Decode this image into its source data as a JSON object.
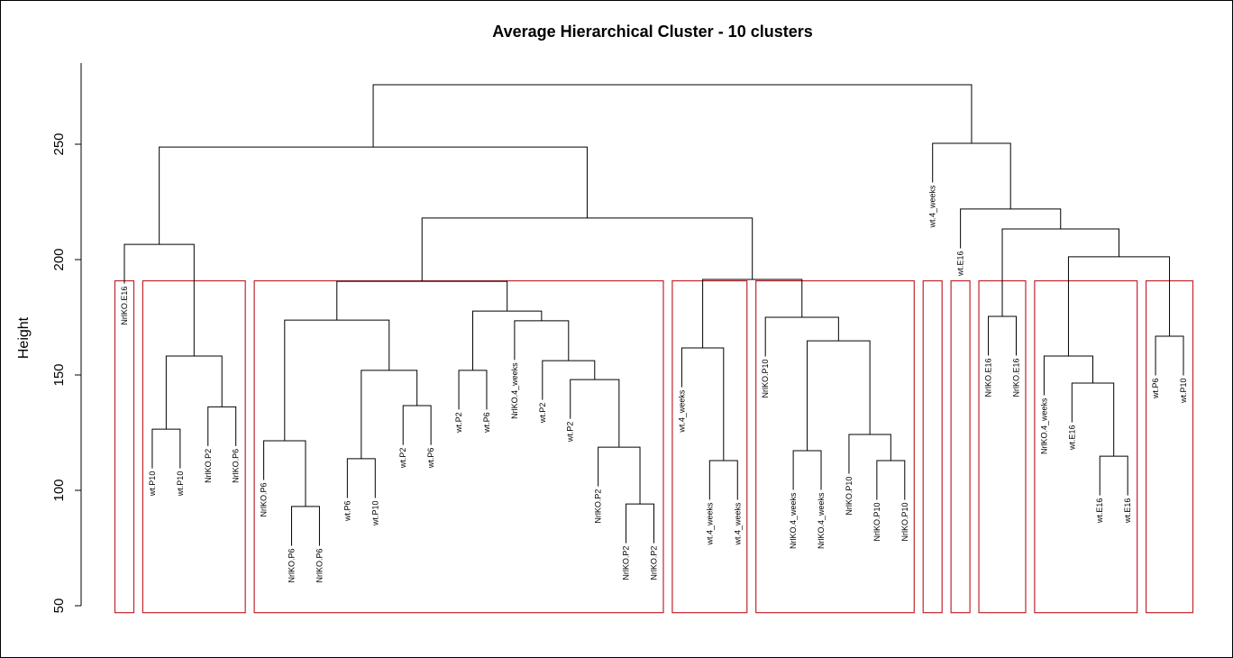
{
  "chart_data": {
    "type": "dendrogram",
    "title": "Average Hierarchical Cluster - 10 clusters",
    "y_label": "Height",
    "ylim": [
      47,
      280
    ],
    "yticks": [
      50,
      100,
      150,
      200,
      250
    ],
    "hang": 17,
    "leaves": [
      "NrlKO.E16",
      "wt.P10",
      "wt.P10",
      "NrlKO.P2",
      "NrlKO.P6",
      "NrlKO.P6",
      "NrlKO.P6",
      "NrlKO.P6",
      "wt.P6",
      "wt.P10",
      "wt.P2",
      "wt.P6",
      "wt.P2",
      "wt.P6",
      "NrlKO.4_weeks",
      "wt.P2",
      "wt.P2",
      "NrlKO.P2",
      "NrlKO.P2",
      "NrlKO.P2",
      "wt.4_weeks",
      "wt.4_weeks",
      "wt.4_weeks",
      "NrlKO.P10",
      "NrlKO.4_weeks",
      "NrlKO.4_weeks",
      "NrlKO.P10",
      "NrlKO.P10",
      "NrlKO.P10",
      "wt.4_weeks",
      "wt.E16",
      "NrlKO.E16",
      "NrlKO.E16",
      "NrlKO.4_weeks",
      "wt.E16",
      "wt.E16",
      "wt.E16",
      "wt.P6",
      "wt.P10"
    ],
    "merge": [
      [
        -7,
        -8
      ],
      [
        -19,
        -20
      ],
      [
        -22,
        -23
      ],
      [
        -28,
        -29
      ],
      [
        -9,
        -10
      ],
      [
        -36,
        -37
      ],
      [
        -25,
        -26
      ],
      [
        -18,
        2
      ],
      [
        -6,
        1
      ],
      [
        -27,
        4
      ],
      [
        -2,
        -3
      ],
      [
        -4,
        -5
      ],
      [
        -11,
        -12
      ],
      [
        -35,
        6
      ],
      [
        -17,
        8
      ],
      [
        5,
        13
      ],
      [
        -13,
        -14
      ],
      [
        -16,
        15
      ],
      [
        11,
        12
      ],
      [
        -34,
        14
      ],
      [
        -21,
        3
      ],
      [
        7,
        10
      ],
      [
        -38,
        -39
      ],
      [
        -15,
        18
      ],
      [
        9,
        16
      ],
      [
        -24,
        22
      ],
      [
        -32,
        -33
      ],
      [
        17,
        24
      ],
      [
        25,
        28
      ],
      [
        21,
        26
      ],
      [
        20,
        23
      ],
      [
        -1,
        19
      ],
      [
        27,
        31
      ],
      [
        29,
        30
      ],
      [
        -31,
        33
      ],
      [
        32,
        34
      ],
      [
        -30,
        35
      ],
      [
        36,
        37
      ]
    ],
    "height": [
      93.0,
      94.1,
      112.9,
      112.9,
      113.7,
      114.8,
      117.2,
      118.7,
      121.5,
      124.2,
      126.5,
      136.2,
      136.7,
      146.5,
      148.0,
      152.0,
      152.0,
      156.2,
      158.2,
      158.2,
      161.7,
      164.8,
      166.8,
      173.5,
      173.8,
      175.0,
      175.4,
      177.7,
      190.6,
      191.4,
      201.2,
      206.6,
      213.3,
      218.0,
      221.9,
      248.8,
      250.4,
      275.8
    ],
    "clusters": [
      1,
      4,
      15,
      3,
      6,
      1,
      1,
      2,
      4,
      2
    ],
    "cut_height": 190.8,
    "line_color": "#000000",
    "cluster_color": "#c0262c"
  }
}
